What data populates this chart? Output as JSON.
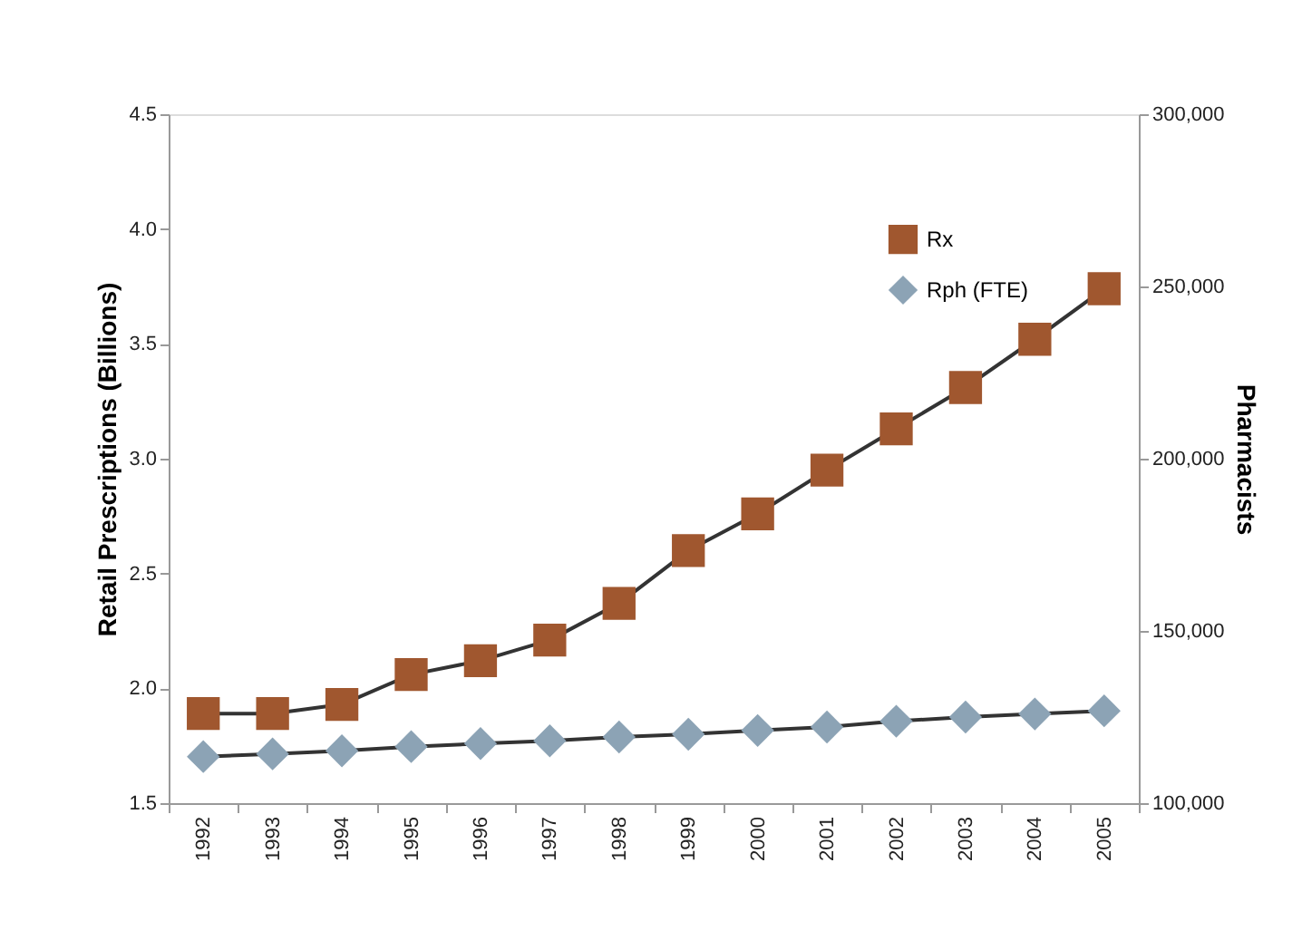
{
  "chart_data": {
    "type": "line",
    "ylabel": "Retail Prescriptions (Billions)",
    "y2label": "Pharmacists",
    "categories": [
      "1992",
      "1993",
      "1994",
      "1995",
      "1996",
      "1997",
      "1998",
      "1999",
      "2000",
      "2001",
      "2002",
      "2003",
      "2004",
      "2005"
    ],
    "series": [
      {
        "name": "Rx",
        "color": "#a0572f",
        "marker": "square",
        "values": [
          1.89,
          1.89,
          1.93,
          2.06,
          2.12,
          2.21,
          2.37,
          2.6,
          2.76,
          2.95,
          3.13,
          3.31,
          3.52,
          3.74
        ]
      },
      {
        "name": "Rph (FTE)",
        "color": "#8ca3b5",
        "marker": "diamond",
        "axis": "y2",
        "values": [
          113500,
          114300,
          115200,
          116400,
          117300,
          118100,
          119200,
          120000,
          121100,
          122100,
          123800,
          125000,
          125900,
          126800
        ]
      }
    ],
    "ylim": [
      1.5,
      4.5
    ],
    "yticks": [
      {
        "value": 1.5,
        "label": "1.5"
      },
      {
        "value": 2,
        "label": "2.0"
      },
      {
        "value": 2.5,
        "label": "2.5"
      },
      {
        "value": 3,
        "label": "3.0"
      },
      {
        "value": 3.5,
        "label": "3.5"
      },
      {
        "value": 4,
        "label": "4.0"
      },
      {
        "value": 4.5,
        "label": "4.5"
      }
    ],
    "y2lim": [
      100000,
      300000
    ],
    "y2ticks": [
      {
        "value": 100000,
        "label": "100,000"
      },
      {
        "value": 150000,
        "label": "150,000"
      },
      {
        "value": 200000,
        "label": "200,000"
      },
      {
        "value": 250000,
        "label": "250,000"
      },
      {
        "value": 300000,
        "label": "300,000"
      }
    ],
    "grid": false,
    "legend": "top right",
    "line_style": "solid"
  }
}
